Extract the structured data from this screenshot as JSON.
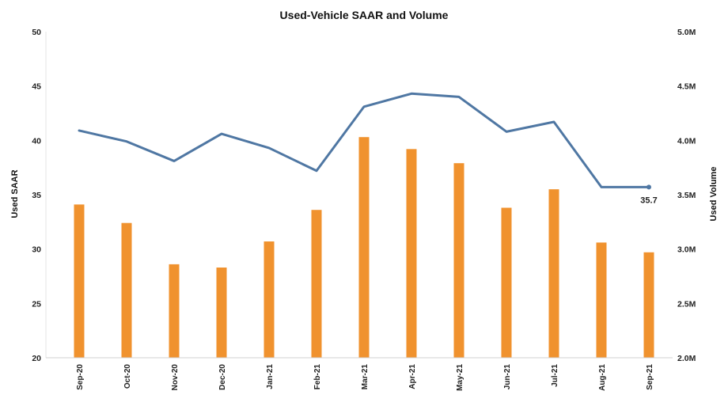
{
  "chart_data": {
    "type": "bar",
    "title": "Used-Vehicle SAAR and Volume",
    "categories": [
      "Sep-20",
      "Oct-20",
      "Nov-20",
      "Dec-20",
      "Jan-21",
      "Feb-21",
      "Mar-21",
      "Apr-21",
      "May-21",
      "Jun-21",
      "Jul-21",
      "Aug-21",
      "Sep-21"
    ],
    "series": [
      {
        "name": "Used Volume",
        "type": "bar",
        "axis": "right",
        "color": "#F0922E",
        "values": [
          3.41,
          3.24,
          2.86,
          2.83,
          3.07,
          3.36,
          4.03,
          3.92,
          3.79,
          3.38,
          3.55,
          3.06,
          2.97
        ]
      },
      {
        "name": "Used SAAR",
        "type": "line",
        "axis": "left",
        "color": "#4F77A3",
        "values": [
          40.9,
          39.9,
          38.1,
          40.6,
          39.3,
          37.2,
          43.1,
          44.3,
          44.0,
          40.8,
          41.7,
          35.7,
          35.7
        ]
      }
    ],
    "ylabel": "Used SAAR",
    "ylim": [
      20,
      50
    ],
    "yticks": [
      "20",
      "25",
      "30",
      "35",
      "40",
      "45",
      "50"
    ],
    "y2label": "Used Volume",
    "y2lim": [
      2.0,
      5.0
    ],
    "y2ticks": [
      "2.0M",
      "2.5M",
      "3.0M",
      "3.5M",
      "4.0M",
      "4.5M",
      "5.0M"
    ],
    "annotations": [
      {
        "series": "Used SAAR",
        "category": "Sep-21",
        "text": "35.7"
      }
    ],
    "grid": false,
    "legend": "none"
  }
}
